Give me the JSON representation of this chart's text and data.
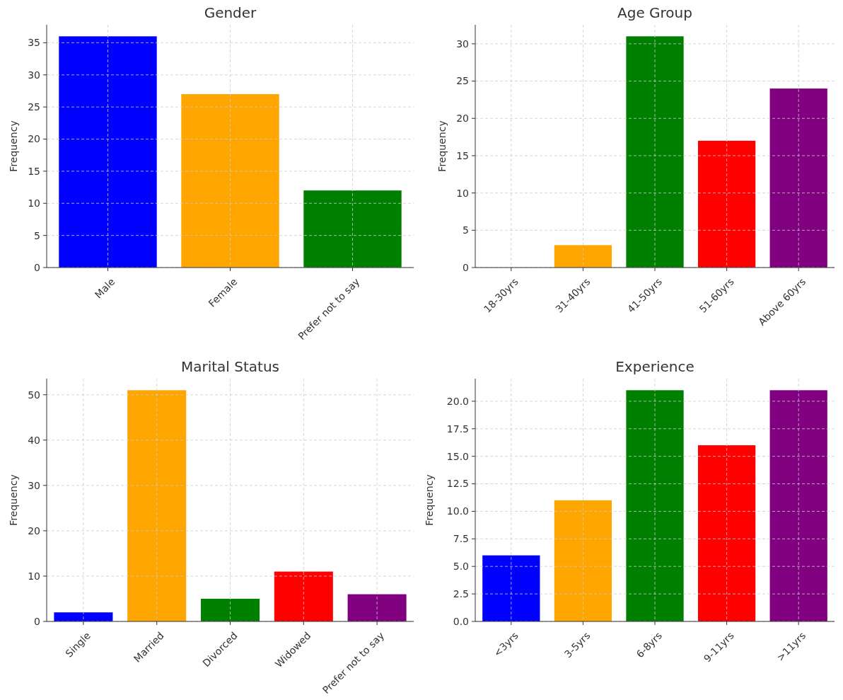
{
  "chart_data": [
    {
      "type": "bar",
      "title": "Gender",
      "ylabel": "Frequency",
      "categories": [
        "Male",
        "Female",
        "Prefer not to say"
      ],
      "values": [
        36,
        27,
        12
      ],
      "colors": [
        "#0000ff",
        "#ffa500",
        "#008000"
      ],
      "ylim": [
        0,
        37.8
      ],
      "yticks": [
        0,
        5,
        10,
        15,
        20,
        25,
        30,
        35
      ],
      "grid": true
    },
    {
      "type": "bar",
      "title": "Age Group",
      "ylabel": "Frequency",
      "categories": [
        "18-30yrs",
        "31-40yrs",
        "41-50yrs",
        "51-60yrs",
        "Above 60yrs"
      ],
      "values": [
        0,
        3,
        31,
        17,
        24
      ],
      "colors": [
        "#0000ff",
        "#ffa500",
        "#008000",
        "#ff0000",
        "#800080"
      ],
      "ylim": [
        0,
        32.55
      ],
      "yticks": [
        0,
        5,
        10,
        15,
        20,
        25,
        30
      ],
      "grid": true
    },
    {
      "type": "bar",
      "title": "Marital Status",
      "ylabel": "Frequency",
      "categories": [
        "Single",
        "Married",
        "Divorced",
        "Widowed",
        "Prefer not to say"
      ],
      "values": [
        2,
        51,
        5,
        11,
        6
      ],
      "colors": [
        "#0000ff",
        "#ffa500",
        "#008000",
        "#ff0000",
        "#800080"
      ],
      "ylim": [
        0,
        53.55
      ],
      "yticks": [
        0,
        10,
        20,
        30,
        40,
        50
      ],
      "grid": true
    },
    {
      "type": "bar",
      "title": "Experience",
      "ylabel": "Frequency",
      "categories": [
        "<3yrs",
        "3-5yrs",
        "6-8yrs",
        "9-11yrs",
        ">11yrs"
      ],
      "values": [
        6,
        11,
        21,
        16,
        21
      ],
      "colors": [
        "#0000ff",
        "#ffa500",
        "#008000",
        "#ff0000",
        "#800080"
      ],
      "ylim": [
        0,
        22.05
      ],
      "yticks": [
        {
          "value": 0,
          "label": "0.0"
        },
        {
          "value": 2.5,
          "label": "2.5"
        },
        {
          "value": 5,
          "label": "5.0"
        },
        {
          "value": 7.5,
          "label": "7.5"
        },
        {
          "value": 10,
          "label": "10.0"
        },
        {
          "value": 12.5,
          "label": "12.5"
        },
        {
          "value": 15,
          "label": "15.0"
        },
        {
          "value": 17.5,
          "label": "17.5"
        },
        {
          "value": 20,
          "label": "20.0"
        }
      ],
      "grid": true
    }
  ]
}
